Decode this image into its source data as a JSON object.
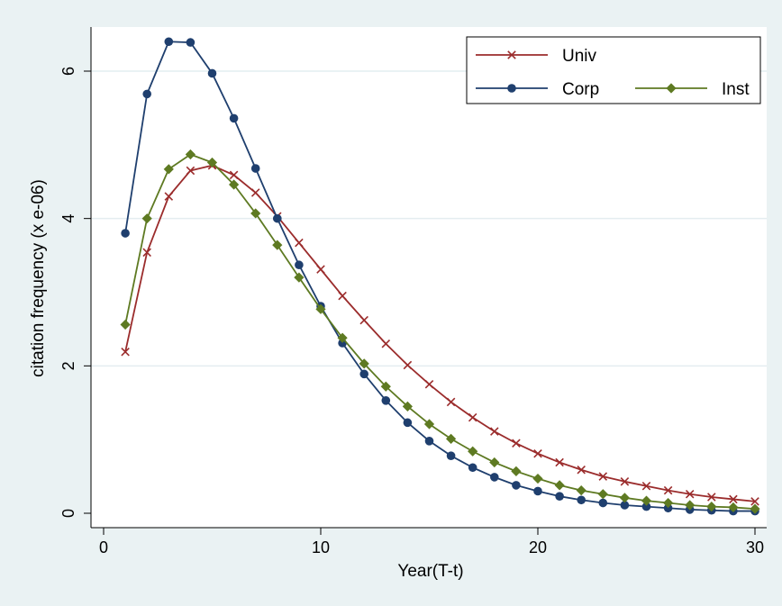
{
  "chart_data": {
    "type": "line",
    "xlabel": "Year(T-t)",
    "ylabel": "citation frequency (x e-06)",
    "xlim": [
      0,
      30
    ],
    "ylim": [
      0,
      6.5
    ],
    "xticks": [
      0,
      10,
      20,
      30
    ],
    "yticks": [
      0,
      2,
      4,
      6
    ],
    "grid": "horizontal",
    "legend_position": "top-right",
    "x": [
      1,
      2,
      3,
      4,
      5,
      6,
      7,
      8,
      9,
      10,
      11,
      12,
      13,
      14,
      15,
      16,
      17,
      18,
      19,
      20,
      21,
      22,
      23,
      24,
      25,
      26,
      27,
      28,
      29,
      30
    ],
    "series": [
      {
        "name": "Univ",
        "color": "#9b2c2c",
        "marker": "x",
        "values": [
          2.19,
          3.54,
          4.3,
          4.65,
          4.72,
          4.59,
          4.35,
          4.03,
          3.67,
          3.31,
          2.95,
          2.62,
          2.3,
          2.01,
          1.75,
          1.51,
          1.3,
          1.11,
          0.95,
          0.81,
          0.69,
          0.59,
          0.5,
          0.43,
          0.37,
          0.31,
          0.26,
          0.22,
          0.19,
          0.16
        ]
      },
      {
        "name": "Corp",
        "color": "#1f3f6e",
        "marker": "circle",
        "values": [
          3.8,
          5.69,
          6.4,
          6.39,
          5.97,
          5.36,
          4.68,
          4.0,
          3.37,
          2.81,
          2.31,
          1.89,
          1.53,
          1.23,
          0.98,
          0.78,
          0.62,
          0.49,
          0.38,
          0.3,
          0.23,
          0.18,
          0.14,
          0.11,
          0.09,
          0.07,
          0.05,
          0.04,
          0.03,
          0.03
        ]
      },
      {
        "name": "Inst",
        "color": "#5e7a22",
        "marker": "diamond",
        "values": [
          2.56,
          4.0,
          4.67,
          4.87,
          4.76,
          4.46,
          4.07,
          3.64,
          3.2,
          2.77,
          2.38,
          2.03,
          1.72,
          1.45,
          1.21,
          1.01,
          0.84,
          0.69,
          0.57,
          0.47,
          0.38,
          0.31,
          0.26,
          0.21,
          0.17,
          0.14,
          0.11,
          0.09,
          0.08,
          0.06
        ]
      }
    ]
  }
}
